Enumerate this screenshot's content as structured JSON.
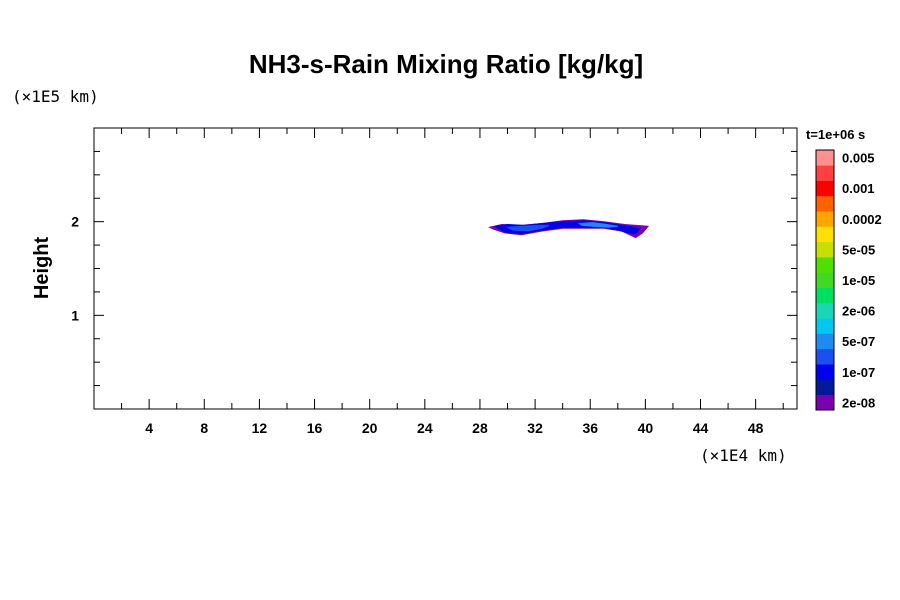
{
  "chart_data": {
    "type": "contour",
    "title": "NH3-s-Rain Mixing Ratio [kg/kg]",
    "ylabel": "Height",
    "x_unit": "(×1E4 km)",
    "y_unit": "(×1E5 km)",
    "time_label": "t=1e+06 s",
    "xlim": [
      0,
      51
    ],
    "ylim": [
      0,
      3
    ],
    "x_ticks": [
      4,
      8,
      12,
      16,
      20,
      24,
      28,
      32,
      36,
      40,
      44,
      48
    ],
    "x_tick_labels": [
      "4",
      "8",
      "12",
      "16",
      "20",
      "24",
      "28",
      "32",
      "36",
      "40",
      "44",
      "48"
    ],
    "y_ticks": [
      1,
      2
    ],
    "y_tick_labels": [
      "1",
      "2"
    ],
    "colorbar": {
      "colors": [
        "#7b00b0",
        "#001a9a",
        "#0000ee",
        "#1a50f0",
        "#1c8cf0",
        "#00c8f0",
        "#1ad7b4",
        "#00e060",
        "#40d820",
        "#50e000",
        "#c8e000",
        "#ffe000",
        "#ffa500",
        "#ff6000",
        "#ff0000",
        "#ff4040",
        "#ff9090"
      ],
      "labels": [
        "2e-08",
        "1e-07",
        "5e-07",
        "2e-06",
        "1e-05",
        "5e-05",
        "0.0002",
        "0.001",
        "0.005"
      ]
    },
    "regions": [
      {
        "level": "2e-08",
        "color": "#7b00b0",
        "polygon": [
          [
            28.7,
            1.94
          ],
          [
            29.6,
            1.97
          ],
          [
            31.0,
            1.96
          ],
          [
            32.5,
            1.98
          ],
          [
            34.0,
            2.01
          ],
          [
            35.5,
            2.02
          ],
          [
            37.0,
            2.0
          ],
          [
            38.5,
            1.97
          ],
          [
            40.2,
            1.95
          ],
          [
            39.8,
            1.88
          ],
          [
            39.3,
            1.83
          ],
          [
            39.0,
            1.85
          ],
          [
            38.3,
            1.9
          ],
          [
            37.0,
            1.93
          ],
          [
            35.5,
            1.93
          ],
          [
            34.0,
            1.93
          ],
          [
            32.5,
            1.9
          ],
          [
            31.0,
            1.86
          ],
          [
            29.8,
            1.88
          ],
          [
            29.0,
            1.92
          ]
        ]
      },
      {
        "level": "1e-07",
        "color": "#0000ee",
        "polygon": [
          [
            29.1,
            1.95
          ],
          [
            30.0,
            1.97
          ],
          [
            31.2,
            1.96
          ],
          [
            32.5,
            1.98
          ],
          [
            34.0,
            2.0
          ],
          [
            35.5,
            2.01
          ],
          [
            37.0,
            1.99
          ],
          [
            38.3,
            1.96
          ],
          [
            39.6,
            1.93
          ],
          [
            39.3,
            1.87
          ],
          [
            38.8,
            1.88
          ],
          [
            38.0,
            1.91
          ],
          [
            37.0,
            1.94
          ],
          [
            35.5,
            1.94
          ],
          [
            34.0,
            1.94
          ],
          [
            32.5,
            1.91
          ],
          [
            31.0,
            1.87
          ],
          [
            29.8,
            1.89
          ],
          [
            29.3,
            1.93
          ]
        ]
      },
      {
        "level": "5e-07",
        "color": "#1a50f0",
        "polygon": [
          [
            30.0,
            1.94
          ],
          [
            31.0,
            1.95
          ],
          [
            32.3,
            1.96
          ],
          [
            33.0,
            1.96
          ],
          [
            32.5,
            1.93
          ],
          [
            31.5,
            1.9
          ],
          [
            30.4,
            1.91
          ]
        ]
      },
      {
        "level": "5e-07",
        "color": "#1c8cf0",
        "polygon": [
          [
            35.2,
            1.98
          ],
          [
            36.2,
            1.99
          ],
          [
            37.2,
            1.97
          ],
          [
            38.0,
            1.95
          ],
          [
            37.3,
            1.94
          ],
          [
            36.2,
            1.95
          ],
          [
            35.4,
            1.96
          ]
        ]
      }
    ]
  }
}
